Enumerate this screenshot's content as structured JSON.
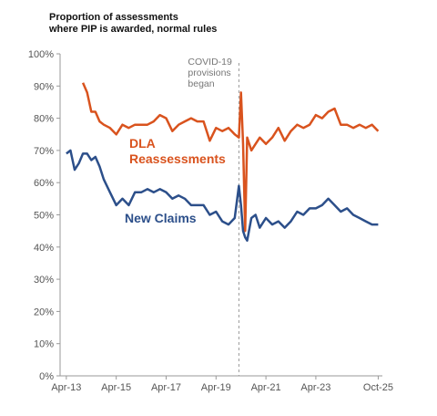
{
  "chart_data": {
    "type": "line",
    "title": [
      "Proportion of assessments",
      "where PIP is awarded, normal rules"
    ],
    "x": [
      "2013-04",
      "2013-06",
      "2013-08",
      "2013-10",
      "2013-12",
      "2014-02",
      "2014-04",
      "2014-06",
      "2014-08",
      "2014-10",
      "2015-01",
      "2015-04",
      "2015-07",
      "2015-10",
      "2016-01",
      "2016-04",
      "2016-07",
      "2016-10",
      "2017-01",
      "2017-04",
      "2017-07",
      "2017-10",
      "2018-01",
      "2018-04",
      "2018-07",
      "2018-10",
      "2019-01",
      "2019-04",
      "2019-07",
      "2019-10",
      "2020-01",
      "2020-03",
      "2020-04",
      "2020-05",
      "2020-06",
      "2020-07",
      "2020-09",
      "2020-11",
      "2021-01",
      "2021-04",
      "2021-07",
      "2021-10",
      "2022-01",
      "2022-04",
      "2022-07",
      "2022-10",
      "2023-01",
      "2023-04",
      "2023-07",
      "2023-10",
      "2024-01",
      "2024-04",
      "2024-07",
      "2024-10",
      "2025-01",
      "2025-04",
      "2025-07",
      "2025-10"
    ],
    "series": [
      {
        "name": "DLA Reassessments",
        "color": "#d9531e",
        "values": [
          null,
          null,
          null,
          null,
          91,
          88,
          82,
          82,
          79,
          78,
          77,
          75,
          78,
          77,
          78,
          78,
          78,
          79,
          81,
          80,
          76,
          78,
          79,
          80,
          79,
          79,
          73,
          77,
          76,
          77,
          75,
          74,
          88,
          72,
          45,
          74,
          70,
          72,
          74,
          72,
          74,
          77,
          73,
          76,
          78,
          77,
          78,
          81,
          80,
          82,
          83,
          78,
          78,
          77,
          78,
          77,
          78,
          76
        ]
      },
      {
        "name": "New Claims",
        "color": "#2c4f8a",
        "values": [
          69,
          70,
          64,
          66,
          69,
          69,
          67,
          68,
          65,
          61,
          57,
          53,
          55,
          53,
          57,
          57,
          58,
          57,
          58,
          57,
          55,
          56,
          55,
          53,
          53,
          53,
          50,
          51,
          48,
          47,
          49,
          59,
          53,
          45,
          43,
          42,
          49,
          50,
          46,
          49,
          47,
          48,
          46,
          48,
          51,
          50,
          52,
          52,
          53,
          55,
          53,
          51,
          52,
          50,
          49,
          48,
          47,
          47
        ]
      }
    ],
    "xlim": [
      "2013-01",
      "2025-12"
    ],
    "xticks": [
      {
        "value": "2013-04",
        "label": "Apr-13"
      },
      {
        "value": "2015-04",
        "label": "Apr-15"
      },
      {
        "value": "2017-04",
        "label": "Apr-17"
      },
      {
        "value": "2019-04",
        "label": "Apr-19"
      },
      {
        "value": "2021-04",
        "label": "Apr-21"
      },
      {
        "value": "2023-04",
        "label": "Apr-23"
      },
      {
        "value": "2025-10",
        "label": "Oct-25"
      }
    ],
    "ylim": [
      0,
      100
    ],
    "yticks": [
      {
        "value": 0,
        "label": "0%"
      },
      {
        "value": 10,
        "label": "10%"
      },
      {
        "value": 20,
        "label": "20%"
      },
      {
        "value": 30,
        "label": "30%"
      },
      {
        "value": 40,
        "label": "40%"
      },
      {
        "value": 50,
        "label": "50%"
      },
      {
        "value": 60,
        "label": "60%"
      },
      {
        "value": 70,
        "label": "70%"
      },
      {
        "value": 80,
        "label": "80%"
      },
      {
        "value": 90,
        "label": "90%"
      },
      {
        "value": 100,
        "label": "100%"
      }
    ],
    "annotation": {
      "x": "2020-03",
      "text": [
        "COVID-19",
        "provisions",
        "began"
      ]
    }
  }
}
